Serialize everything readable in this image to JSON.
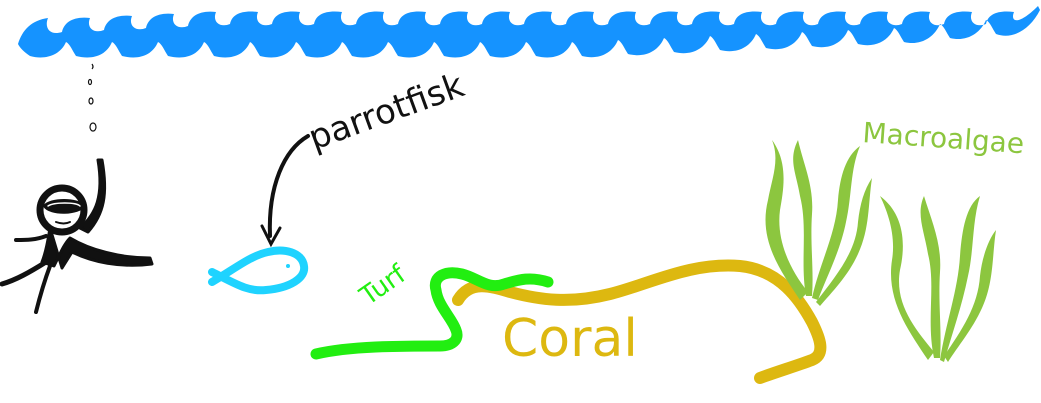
{
  "labels": {
    "parrotfish": "parrotfisk",
    "turf": "Turf",
    "coral": "Coral",
    "macroalgae": "Macroalgae"
  },
  "colors": {
    "water": "#1593ff",
    "diver": "#111111",
    "fish": "#1fd3ff",
    "turf": "#22ee11",
    "coral": "#ddb810",
    "macroalgae": "#8cc63f",
    "arrow": "#111111",
    "background": "#ffffff"
  }
}
